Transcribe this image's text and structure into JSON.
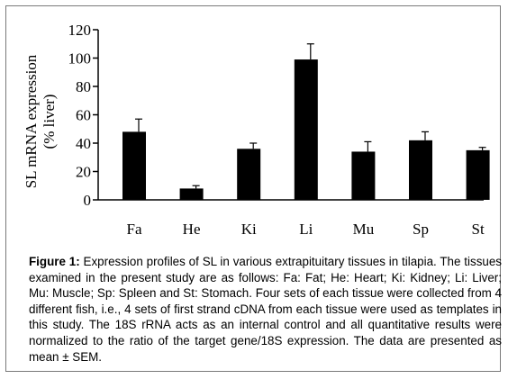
{
  "chart_data": {
    "type": "bar",
    "categories": [
      "Fa",
      "He",
      "Ki",
      "Li",
      "Mu",
      "Sp",
      "St"
    ],
    "values": [
      48,
      8,
      36,
      99,
      34,
      42,
      35
    ],
    "errors": [
      9,
      2,
      4,
      11,
      7,
      6,
      2
    ],
    "ylabel_line1": "SL mRNA expression",
    "ylabel_line2": "(% liver)",
    "ylim": [
      0,
      120
    ],
    "yticks": [
      0,
      20,
      40,
      60,
      80,
      100,
      120
    ],
    "bar_color": "#000000",
    "grid": false
  },
  "caption": {
    "label": "Figure 1:",
    "text": "Expression profiles of SL in various extrapituitary tissues in tilapia. The tissues examined in the present study are as follows: Fa: Fat; He: Heart; Ki: Kidney; Li: Liver; Mu: Muscle; Sp: Spleen and St: Stomach. Four sets of each tissue were collected from 4 different fish, i.e., 4 sets of first strand cDNA from each tissue were used as templates in this study. The 18S rRNA acts as an internal control and all quantitative results were normalized to the ratio of the target gene/18S expression. The data are presented as mean ± SEM."
  }
}
